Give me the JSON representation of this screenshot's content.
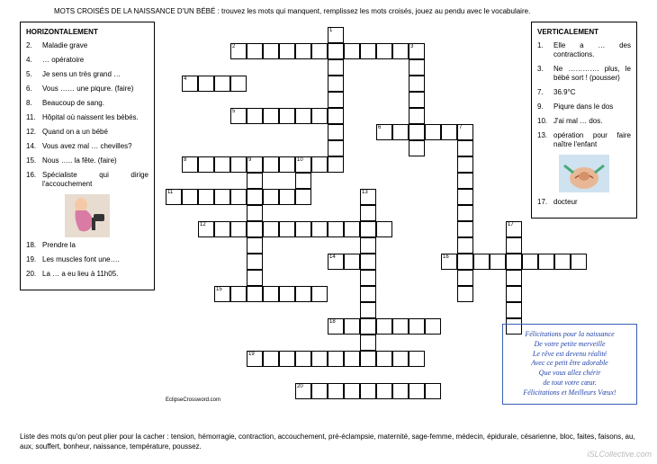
{
  "title": "MOTS CROISÉS DE LA NAISSANCE D'UN BÉBÉ : trouvez les mots qui manquent, remplissez les mots croisés, jouez au pendu avec le vocabulaire.",
  "horizontal": {
    "heading": "HORIZONTALEMENT",
    "clues": [
      {
        "n": "2.",
        "t": "Maladie grave"
      },
      {
        "n": "4.",
        "t": "… opératoire"
      },
      {
        "n": "5.",
        "t": "Je sens un très grand …"
      },
      {
        "n": "6.",
        "t": "Vous …… une piqure. (faire)"
      },
      {
        "n": "8.",
        "t": "Beaucoup de sang."
      },
      {
        "n": "11.",
        "t": "Hôpital où naissent les bébés."
      },
      {
        "n": "12.",
        "t": "Quand on a un bébé"
      },
      {
        "n": "14.",
        "t": "Vous avez mal … chevilles?"
      },
      {
        "n": "15.",
        "t": "Nous ….. la fête. (faire)"
      },
      {
        "n": "16.",
        "t": "Spécialiste qui dirige l'accouchement"
      },
      {
        "n": "18.",
        "t": "Prendre la"
      },
      {
        "n": "19.",
        "t": "Les muscles font une…."
      },
      {
        "n": "20.",
        "t": "La … a eu lieu à 11h05."
      }
    ]
  },
  "vertical": {
    "heading": "VERTICALEMENT",
    "clues": [
      {
        "n": "1.",
        "t": "Elle a … des contractions."
      },
      {
        "n": "3.",
        "t": "Ne …………. plus, le bébé sort ! (pousser)"
      },
      {
        "n": "7.",
        "t": "36.9°C"
      },
      {
        "n": "9.",
        "t": "Piqure dans le dos"
      },
      {
        "n": "10.",
        "t": "J'ai mal … dos."
      },
      {
        "n": "13.",
        "t": "opération pour faire naître l'enfant"
      },
      {
        "n": "17.",
        "t": "docteur"
      }
    ]
  },
  "poem": [
    "Félicitations pour la naissance",
    "De votre petite merveille",
    "Le rêve est devenu réalité",
    "Avec ce petit être adorable",
    "Que vous allez chérir",
    "de tout votre cœur.",
    "Félicitations et Meilleurs Vœux!"
  ],
  "footer": "Liste des mots qu'on peut plier pour la cacher : tension, hémorragie, contraction, accouchement, pré-éclampsie, maternité, sage-femme, médecin, épidurale, césarienne, bloc, faites, faisons, au, aux, souffert, bonheur, naissance, température, poussez.",
  "copyright": "EclipseCrossword.com",
  "watermark": "iSLCollective.com",
  "grid": {
    "cell_size": 18,
    "words": [
      {
        "n": 1,
        "r": 0,
        "c": 10,
        "len": 8,
        "dir": "v"
      },
      {
        "n": 2,
        "r": 1,
        "c": 4,
        "len": 12,
        "dir": "h"
      },
      {
        "n": 3,
        "r": 1,
        "c": 15,
        "len": 7,
        "dir": "v"
      },
      {
        "n": 4,
        "r": 3,
        "c": 1,
        "len": 4,
        "dir": "h"
      },
      {
        "n": 5,
        "r": 5,
        "c": 4,
        "len": 7,
        "dir": "h"
      },
      {
        "n": 6,
        "r": 6,
        "c": 13,
        "len": 6,
        "dir": "h"
      },
      {
        "n": 7,
        "r": 6,
        "c": 18,
        "len": 11,
        "dir": "v"
      },
      {
        "n": 8,
        "r": 8,
        "c": 1,
        "len": 10,
        "dir": "h"
      },
      {
        "n": 9,
        "r": 8,
        "c": 5,
        "len": 9,
        "dir": "v"
      },
      {
        "n": 10,
        "r": 8,
        "c": 8,
        "len": 2,
        "dir": "v"
      },
      {
        "n": 11,
        "r": 10,
        "c": 0,
        "len": 9,
        "dir": "h"
      },
      {
        "n": 12,
        "r": 12,
        "c": 2,
        "len": 12,
        "dir": "h"
      },
      {
        "n": 13,
        "r": 10,
        "c": 12,
        "len": 10,
        "dir": "v"
      },
      {
        "n": 14,
        "r": 14,
        "c": 10,
        "len": 3,
        "dir": "h"
      },
      {
        "n": 15,
        "r": 16,
        "c": 3,
        "len": 7,
        "dir": "h"
      },
      {
        "n": 16,
        "r": 14,
        "c": 17,
        "len": 9,
        "dir": "h"
      },
      {
        "n": 17,
        "r": 12,
        "c": 21,
        "len": 7,
        "dir": "v"
      },
      {
        "n": 18,
        "r": 18,
        "c": 10,
        "len": 7,
        "dir": "h"
      },
      {
        "n": 19,
        "r": 20,
        "c": 5,
        "len": 11,
        "dir": "h"
      },
      {
        "n": 20,
        "r": 22,
        "c": 8,
        "len": 9,
        "dir": "h"
      }
    ]
  }
}
